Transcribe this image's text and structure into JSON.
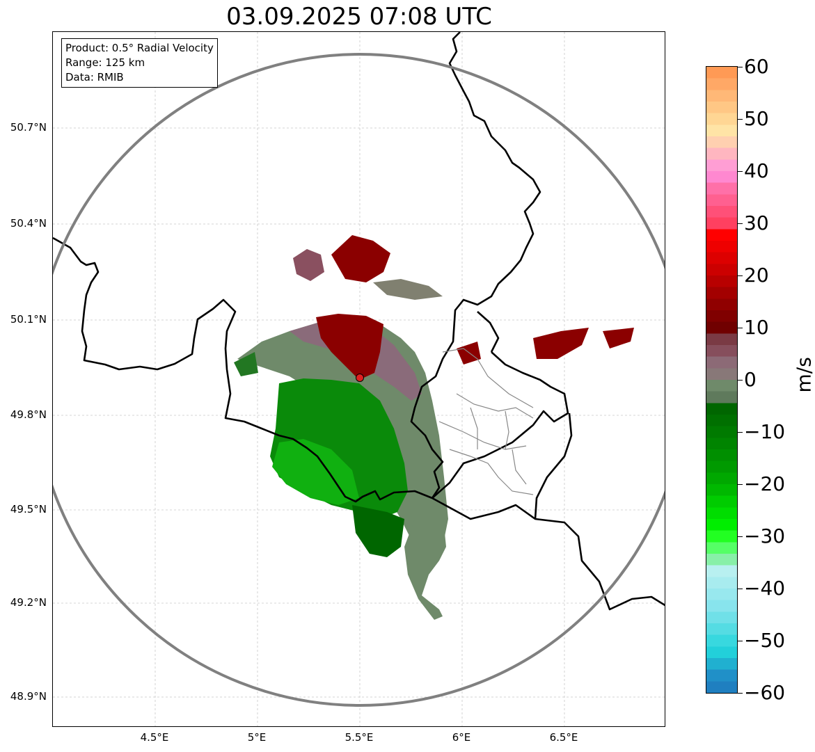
{
  "title": "03.09.2025 07:08 UTC",
  "info": {
    "product": "Product: 0.5° Radial Velocity",
    "range": "Range: 125 km",
    "data_source": "Data: RMIB"
  },
  "axes": {
    "y_ticks": [
      "50.7°N",
      "50.4°N",
      "50.1°N",
      "49.8°N",
      "49.5°N",
      "49.2°N",
      "48.9°N"
    ],
    "x_ticks": [
      "4.5°E",
      "5°E",
      "5.5°E",
      "6°E",
      "6.5°E"
    ]
  },
  "colorbar": {
    "unit": "m/s",
    "tick_labels": [
      "60",
      "50",
      "40",
      "30",
      "20",
      "10",
      "0",
      "−10",
      "−20",
      "−30",
      "−40",
      "−50",
      "−60"
    ],
    "min": -60,
    "max": 60
  },
  "colors": {
    "outbound_strong": "#8b0000",
    "inbound_strong": "#00a000",
    "near_zero": "#6f8c6f",
    "range_ring": "#808080",
    "radar_site": "#e02020"
  }
}
